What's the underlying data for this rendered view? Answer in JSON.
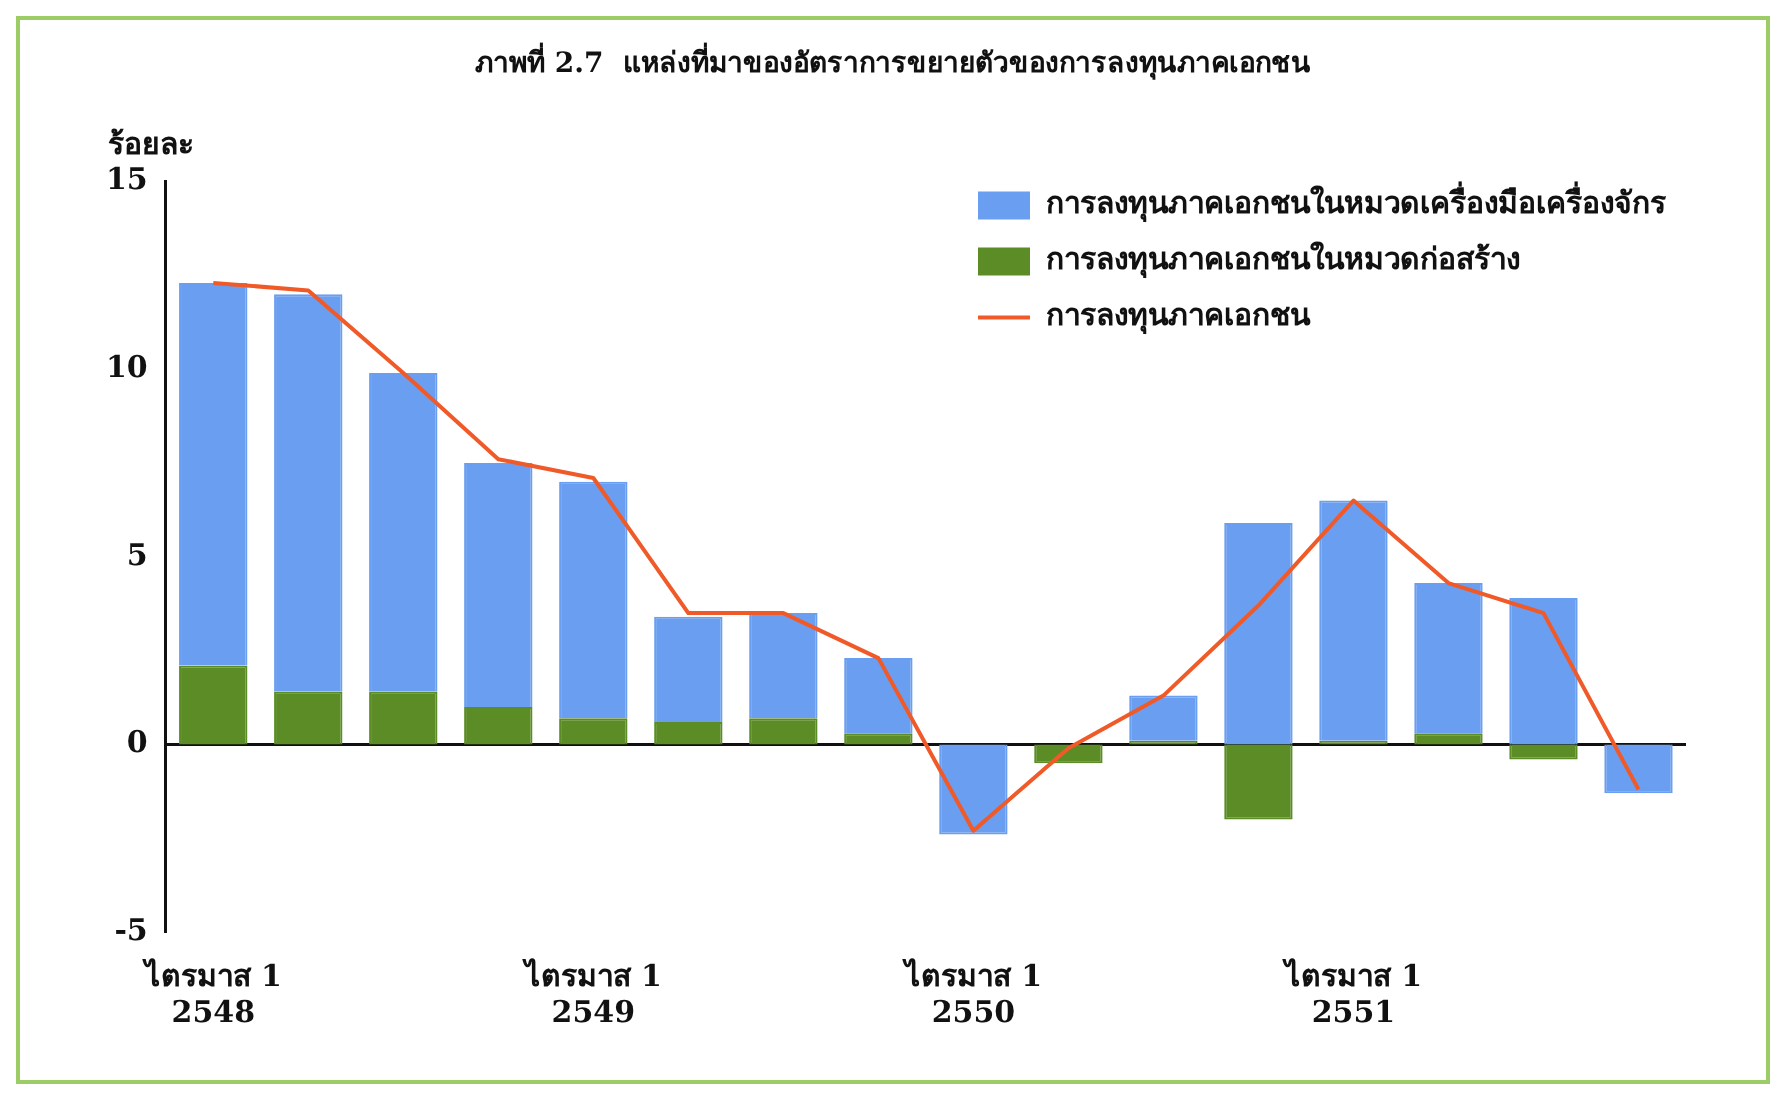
{
  "chart_data": {
    "type": "bar",
    "title": "ภาพที่ 2.7  แหล่งที่มาของอัตราการขยายตัวของการลงทุนภาคเอกชน",
    "ylabel": "ร้อยละ",
    "categories": [
      "ไตรมาส 1\n2548",
      null,
      null,
      null,
      "ไตรมาส 1\n2549",
      null,
      null,
      null,
      "ไตรมาส 1\n2550",
      null,
      null,
      null,
      "ไตรมาส 1\n2551",
      null,
      null,
      null
    ],
    "stacked": true,
    "series": [
      {
        "name": "การลงทุนภาคเอกชนในหมวดก่อสร้าง",
        "color": "#5b8c26",
        "values": [
          2.1,
          1.4,
          1.4,
          1.0,
          0.7,
          0.6,
          0.7,
          0.3,
          0,
          -0.5,
          0.1,
          -2.0,
          0.1,
          0.3,
          -0.4,
          0
        ]
      },
      {
        "name": "การลงทุนภาคเอกชนในหมวดเครื่องมือเครื่องจักร",
        "color": "#6a9ef0",
        "values": [
          10.2,
          10.6,
          8.5,
          6.5,
          6.3,
          2.8,
          2.8,
          2.0,
          -2.4,
          0,
          1.2,
          5.9,
          6.4,
          4.0,
          3.9,
          -1.3
        ]
      },
      {
        "name": "การลงทุนภาคเอกชน",
        "type": "line",
        "color": "#f05a28",
        "values": [
          12.3,
          12.1,
          9.9,
          7.6,
          7.1,
          3.5,
          3.5,
          2.3,
          -2.3,
          -0.1,
          1.3,
          3.7,
          6.5,
          4.3,
          3.5,
          -1.2
        ]
      }
    ],
    "ylim": [
      -5,
      15
    ],
    "yticks": [
      -5,
      0,
      5,
      10,
      15
    ],
    "grid": false,
    "ref_lines": [
      {
        "axis": "y",
        "value": 0,
        "color": "#111111",
        "line_style": "solid"
      }
    ],
    "legend": "top right",
    "marker": "none",
    "line_style": "solid"
  }
}
